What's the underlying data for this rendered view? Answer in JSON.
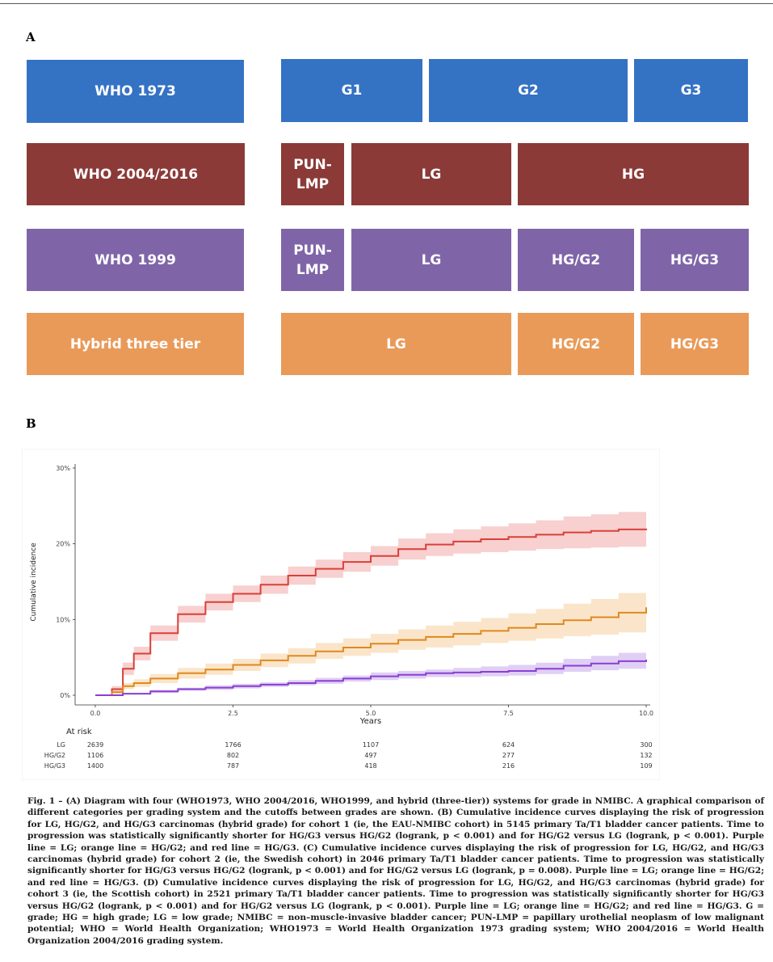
{
  "panel_a_label": "A",
  "panel_b_label": "B",
  "grading_systems": [
    {
      "name": "WHO 1973",
      "categories": [
        "G1",
        "G2",
        "G3"
      ]
    },
    {
      "name": "WHO 2004/2016",
      "categories": [
        "PUN-LMP",
        "LG",
        "HG"
      ]
    },
    {
      "name": "WHO 1999",
      "categories": [
        "PUN-LMP",
        "LG",
        "HG/G2",
        "HG/G3"
      ]
    },
    {
      "name": "Hybrid three tier",
      "categories": [
        "LG",
        "HG/G2",
        "HG/G3"
      ]
    }
  ],
  "colors": {
    "blue": "#3472c4",
    "red_box": "#8b3a38",
    "purple_box": "#7f65a8",
    "orange_box": "#e99a58",
    "line_red": "#d9403a",
    "line_orange": "#e0891e",
    "line_purple": "#8a3fd1"
  },
  "chart_data": {
    "type": "line",
    "title": "",
    "xlabel": "Years",
    "ylabel": "Cumulative incidence",
    "xlim": [
      0,
      10
    ],
    "ylim": [
      0,
      0.3
    ],
    "x_ticks": [
      "0.0",
      "2.5",
      "5.0",
      "7.5",
      "10.0"
    ],
    "y_ticks": [
      "0%",
      "10%",
      "20%",
      "30%"
    ],
    "series": [
      {
        "name": "HG/G3",
        "color": "red",
        "x": [
          0,
          0.2,
          0.3,
          0.5,
          0.7,
          1.0,
          1.5,
          2.0,
          2.5,
          3.0,
          3.5,
          4.0,
          4.5,
          5.0,
          5.5,
          6.0,
          6.5,
          7.0,
          7.5,
          8.0,
          8.5,
          9.0,
          9.5,
          10.0
        ],
        "y": [
          0,
          0,
          0.008,
          0.035,
          0.055,
          0.082,
          0.107,
          0.123,
          0.134,
          0.146,
          0.158,
          0.167,
          0.176,
          0.184,
          0.193,
          0.199,
          0.203,
          0.206,
          0.209,
          0.212,
          0.215,
          0.217,
          0.219,
          0.22
        ],
        "ci_lower": [
          0,
          0,
          0.004,
          0.027,
          0.046,
          0.072,
          0.096,
          0.112,
          0.123,
          0.134,
          0.146,
          0.155,
          0.163,
          0.171,
          0.179,
          0.184,
          0.187,
          0.189,
          0.191,
          0.193,
          0.194,
          0.195,
          0.196,
          0.196
        ],
        "ci_upper": [
          0,
          0,
          0.012,
          0.043,
          0.064,
          0.092,
          0.118,
          0.134,
          0.145,
          0.158,
          0.17,
          0.179,
          0.189,
          0.197,
          0.207,
          0.214,
          0.219,
          0.223,
          0.227,
          0.231,
          0.236,
          0.239,
          0.242,
          0.244
        ]
      },
      {
        "name": "HG/G2",
        "color": "orange",
        "x": [
          0,
          0.2,
          0.3,
          0.5,
          0.7,
          1.0,
          1.5,
          2.0,
          2.5,
          3.0,
          3.5,
          4.0,
          4.5,
          5.0,
          5.5,
          6.0,
          6.5,
          7.0,
          7.5,
          8.0,
          8.5,
          9.0,
          9.5,
          10.0
        ],
        "y": [
          0,
          0,
          0.004,
          0.012,
          0.016,
          0.022,
          0.029,
          0.034,
          0.04,
          0.046,
          0.052,
          0.058,
          0.063,
          0.068,
          0.073,
          0.077,
          0.081,
          0.085,
          0.089,
          0.094,
          0.099,
          0.103,
          0.109,
          0.116
        ],
        "ci_lower": [
          0,
          0,
          0.002,
          0.008,
          0.011,
          0.016,
          0.022,
          0.027,
          0.032,
          0.037,
          0.042,
          0.048,
          0.052,
          0.056,
          0.06,
          0.063,
          0.066,
          0.069,
          0.072,
          0.075,
          0.078,
          0.08,
          0.083,
          0.087
        ],
        "ci_upper": [
          0,
          0,
          0.006,
          0.016,
          0.021,
          0.028,
          0.036,
          0.042,
          0.048,
          0.055,
          0.062,
          0.069,
          0.075,
          0.081,
          0.087,
          0.092,
          0.097,
          0.102,
          0.108,
          0.114,
          0.121,
          0.127,
          0.135,
          0.145
        ]
      },
      {
        "name": "LG",
        "color": "purple",
        "x": [
          0,
          0.2,
          0.5,
          1.0,
          1.5,
          2.0,
          2.5,
          3.0,
          3.5,
          4.0,
          4.5,
          5.0,
          5.5,
          6.0,
          6.5,
          7.0,
          7.5,
          8.0,
          8.5,
          9.0,
          9.5,
          10.0
        ],
        "y": [
          0,
          0,
          0.002,
          0.005,
          0.008,
          0.01,
          0.012,
          0.014,
          0.016,
          0.019,
          0.022,
          0.025,
          0.027,
          0.029,
          0.03,
          0.031,
          0.032,
          0.035,
          0.039,
          0.042,
          0.045,
          0.047
        ],
        "ci_lower": [
          0,
          0,
          0.001,
          0.003,
          0.006,
          0.007,
          0.009,
          0.011,
          0.013,
          0.015,
          0.018,
          0.02,
          0.022,
          0.024,
          0.024,
          0.025,
          0.026,
          0.028,
          0.031,
          0.033,
          0.035,
          0.036
        ],
        "ci_upper": [
          0,
          0,
          0.003,
          0.007,
          0.01,
          0.013,
          0.015,
          0.017,
          0.02,
          0.023,
          0.026,
          0.03,
          0.032,
          0.034,
          0.036,
          0.038,
          0.04,
          0.043,
          0.048,
          0.052,
          0.056,
          0.06
        ]
      }
    ],
    "at_risk": {
      "label": "At risk",
      "rows": [
        {
          "group": "LG",
          "values": [
            "2639",
            "1766",
            "1107",
            "624",
            "300"
          ]
        },
        {
          "group": "HG/G2",
          "values": [
            "1106",
            "802",
            "497",
            "277",
            "132"
          ]
        },
        {
          "group": "HG/G3",
          "values": [
            "1400",
            "787",
            "418",
            "216",
            "109"
          ]
        }
      ]
    }
  },
  "caption": "Fig. 1 – (A) Diagram with four (WHO1973, WHO 2004/2016, WHO1999, and hybrid (three-tier)) systems for grade in NMIBC. A graphical comparison of different categories per grading system and the cutoffs between grades are shown. (B) Cumulative incidence curves displaying the risk of progression for LG, HG/G2, and HG/G3 carcinomas (hybrid grade) for cohort 1 (ie, the EAU-NMIBC cohort) in 5145 primary Ta/T1 bladder cancer patients. Time to progression was statistically significantly shorter for HG/G3 versus HG/G2 (logrank, p < 0.001) and for HG/G2 versus LG (logrank, p < 0.001). Purple line = LG; orange line = HG/G2; and red line = HG/G3. (C) Cumulative incidence curves displaying the risk of progression for LG, HG/G2, and HG/G3 carcinomas (hybrid grade) for cohort 2 (ie, the Swedish cohort) in 2046 primary Ta/T1 bladder cancer patients. Time to progression was statistically significantly shorter for HG/G3 versus HG/G2 (logrank, p < 0.001) and for HG/G2 versus LG (logrank, p = 0.008). Purple line = LG; orange line = HG/G2; and red line = HG/G3. (D) Cumulative incidence curves displaying the risk of progression for LG, HG/G2, and HG/G3 carcinomas (hybrid grade) for cohort 3 (ie, the Scottish cohort) in 2521 primary Ta/T1 bladder cancer patients. Time to progression was statistically significantly shorter for HG/G3 versus HG/G2 (logrank, p < 0.001) and for HG/G2 versus LG (logrank, p < 0.001). Purple line = LG; orange line = HG/G2; and red line = HG/G3. G = grade; HG = high grade; LG = low grade; NMIBC = non–muscle-invasive bladder cancer; PUN-LMP = papillary urothelial neoplasm of low malignant potential; WHO = World Health Organization; WHO1973 = World Health Organization 1973 grading system; WHO 2004/2016 = World Health Organization 2004/2016 grading system."
}
